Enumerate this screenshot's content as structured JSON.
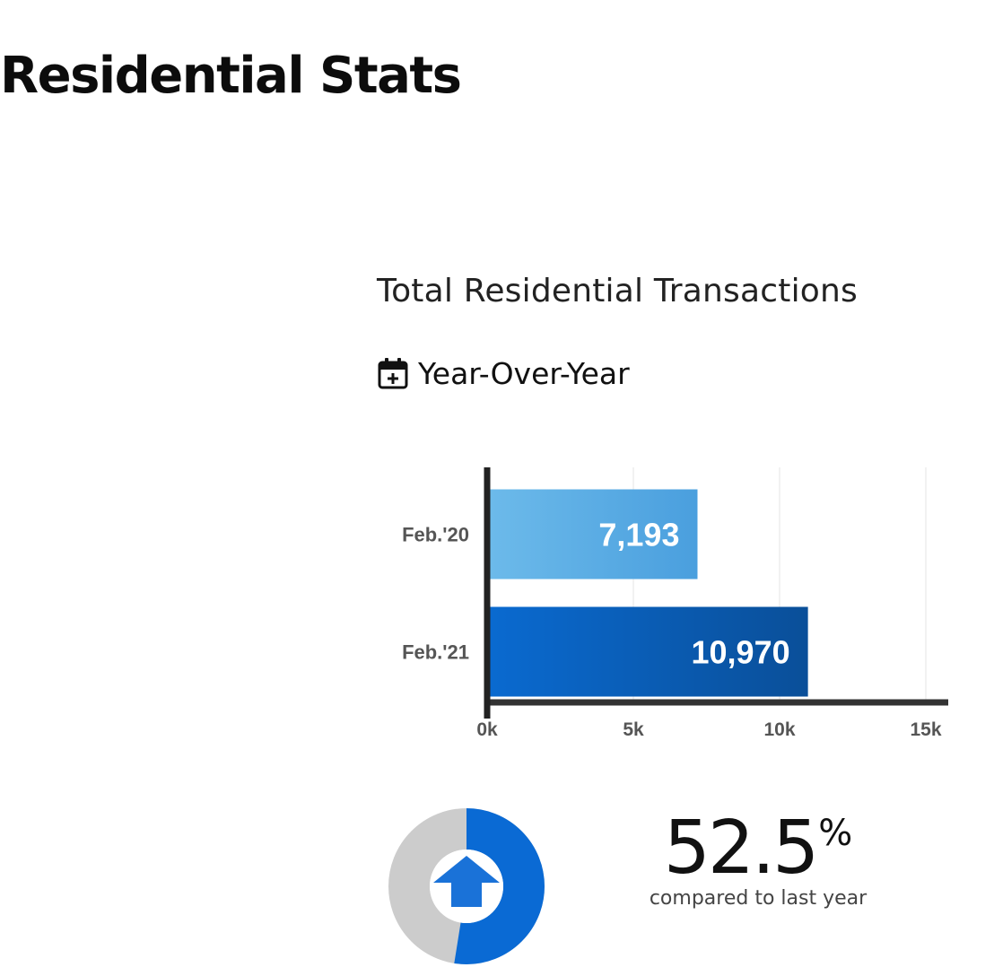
{
  "page": {
    "title": "Residential Stats"
  },
  "section": {
    "title": "Total Residential Transactions",
    "period": "Year-Over-Year",
    "period_icon": "calendar-plus-icon"
  },
  "chart_data": {
    "type": "bar",
    "orientation": "horizontal",
    "categories": [
      "Feb.'20",
      "Feb.'21"
    ],
    "values": [
      7193,
      10970
    ],
    "value_labels": [
      "7,193",
      "10,970"
    ],
    "xlim": [
      0,
      15000
    ],
    "x_ticks": [
      {
        "value": 0,
        "label": "0k"
      },
      {
        "value": 5000,
        "label": "5k"
      },
      {
        "value": 10000,
        "label": "10k"
      },
      {
        "value": 15000,
        "label": "15k"
      }
    ],
    "grid": true,
    "colors": [
      "#5fb2e6",
      "#0a5fb4"
    ]
  },
  "change": {
    "value": "52.5",
    "unit": "%",
    "caption": "compared to last year",
    "fraction": 0.525,
    "direction": "up",
    "icon": "arrow-up-icon",
    "colors": {
      "fill": "#0a6ad4",
      "track": "#cccccc",
      "arrow": "#1a72d8"
    }
  }
}
